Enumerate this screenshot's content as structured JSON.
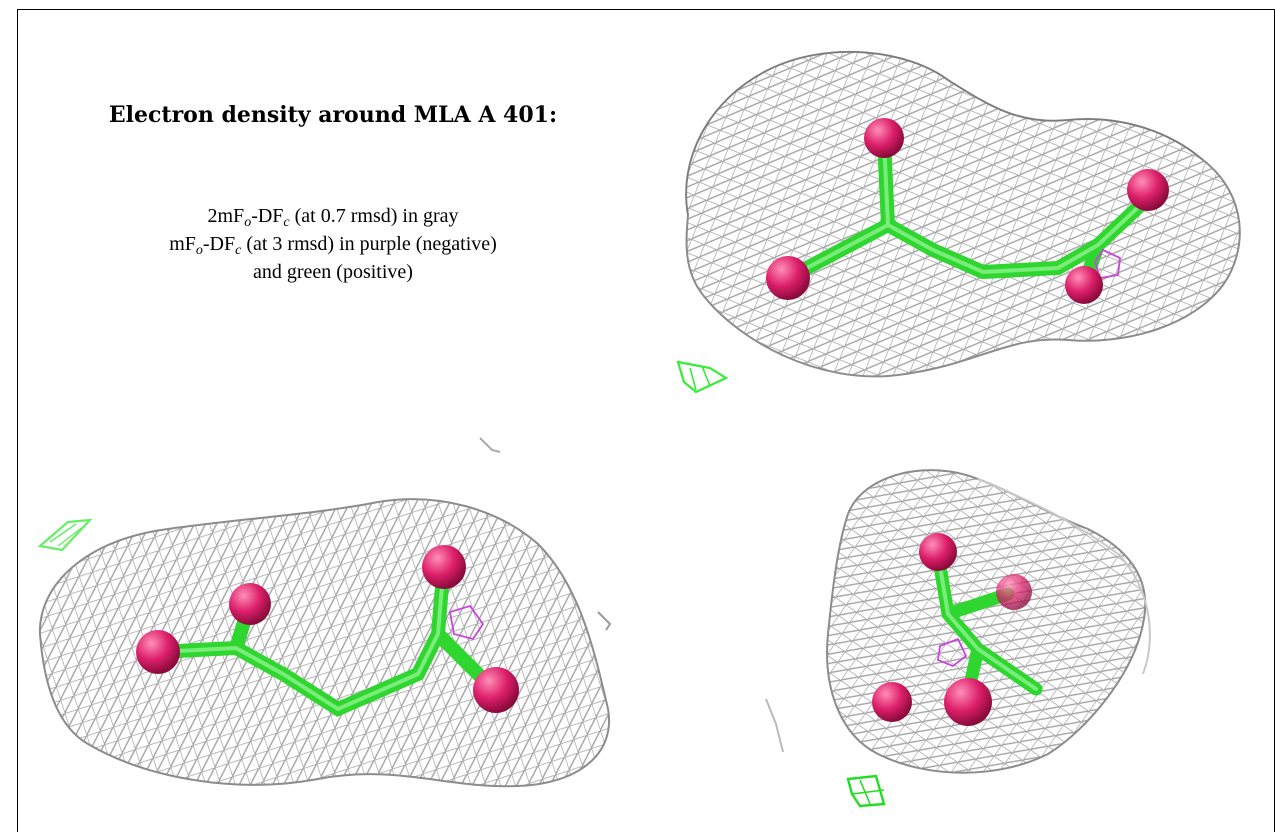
{
  "title": "Electron density around MLA A 401:",
  "legend": {
    "line1": {
      "pre": "2mF",
      "sub1": "o",
      "mid": "-DF",
      "sub2": "c",
      "post": " (at 0.7 rmsd) in gray"
    },
    "line2": {
      "pre": "mF",
      "sub1": "o",
      "mid": "-DF",
      "sub2": "c",
      "post": " (at 3 rmsd) in purple (negative)"
    },
    "line3": "and green (positive)"
  },
  "colors": {
    "mesh_2fofc": "#9a9a9a",
    "mesh_fofc_negative": "#cc44dd",
    "mesh_fofc_positive": "#33ee33",
    "carbon_bonds": "#33ee33",
    "oxygen_atoms": "#dd1f6a"
  },
  "views": [
    {
      "name": "view-1"
    },
    {
      "name": "view-2"
    },
    {
      "name": "view-3"
    }
  ]
}
